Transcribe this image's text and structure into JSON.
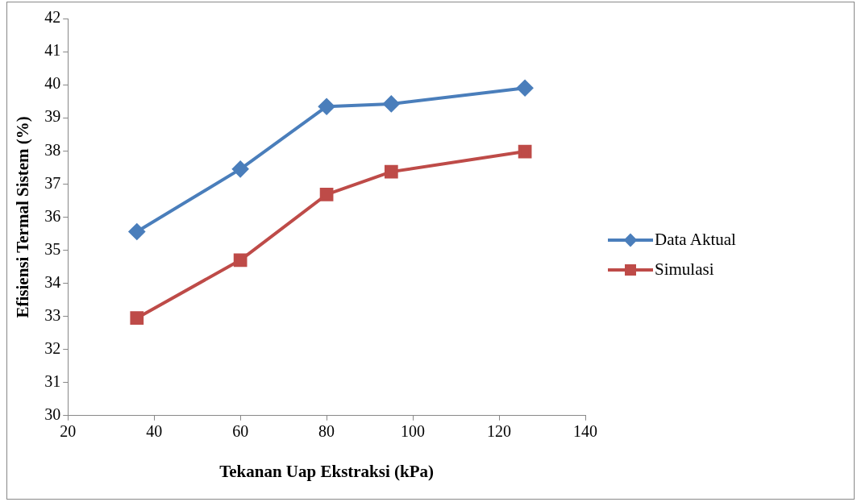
{
  "chart_data": {
    "type": "line",
    "xlabel": "Tekanan Uap Ekstraksi (kPa)",
    "ylabel": "Efisiensi Termal Sistem (%)",
    "xlim": [
      20,
      140
    ],
    "xticks": [
      20,
      40,
      60,
      80,
      100,
      120,
      140
    ],
    "ylim": [
      30,
      42
    ],
    "yticks": [
      30,
      31,
      32,
      33,
      34,
      35,
      36,
      37,
      38,
      39,
      40,
      41,
      42
    ],
    "grid": false,
    "legend": "right",
    "line_style": "solid",
    "series": [
      {
        "name": "Data Aktual",
        "color": "#4a7ebb",
        "marker": "diamond",
        "x": [
          36,
          60,
          80,
          95,
          126
        ],
        "values": [
          35.56,
          37.45,
          39.34,
          39.42,
          39.9
        ]
      },
      {
        "name": "Simulasi",
        "color": "#be4b48",
        "marker": "square",
        "x": [
          36,
          60,
          80,
          95,
          126
        ],
        "values": [
          32.95,
          34.7,
          36.68,
          37.37,
          37.98
        ]
      }
    ]
  }
}
